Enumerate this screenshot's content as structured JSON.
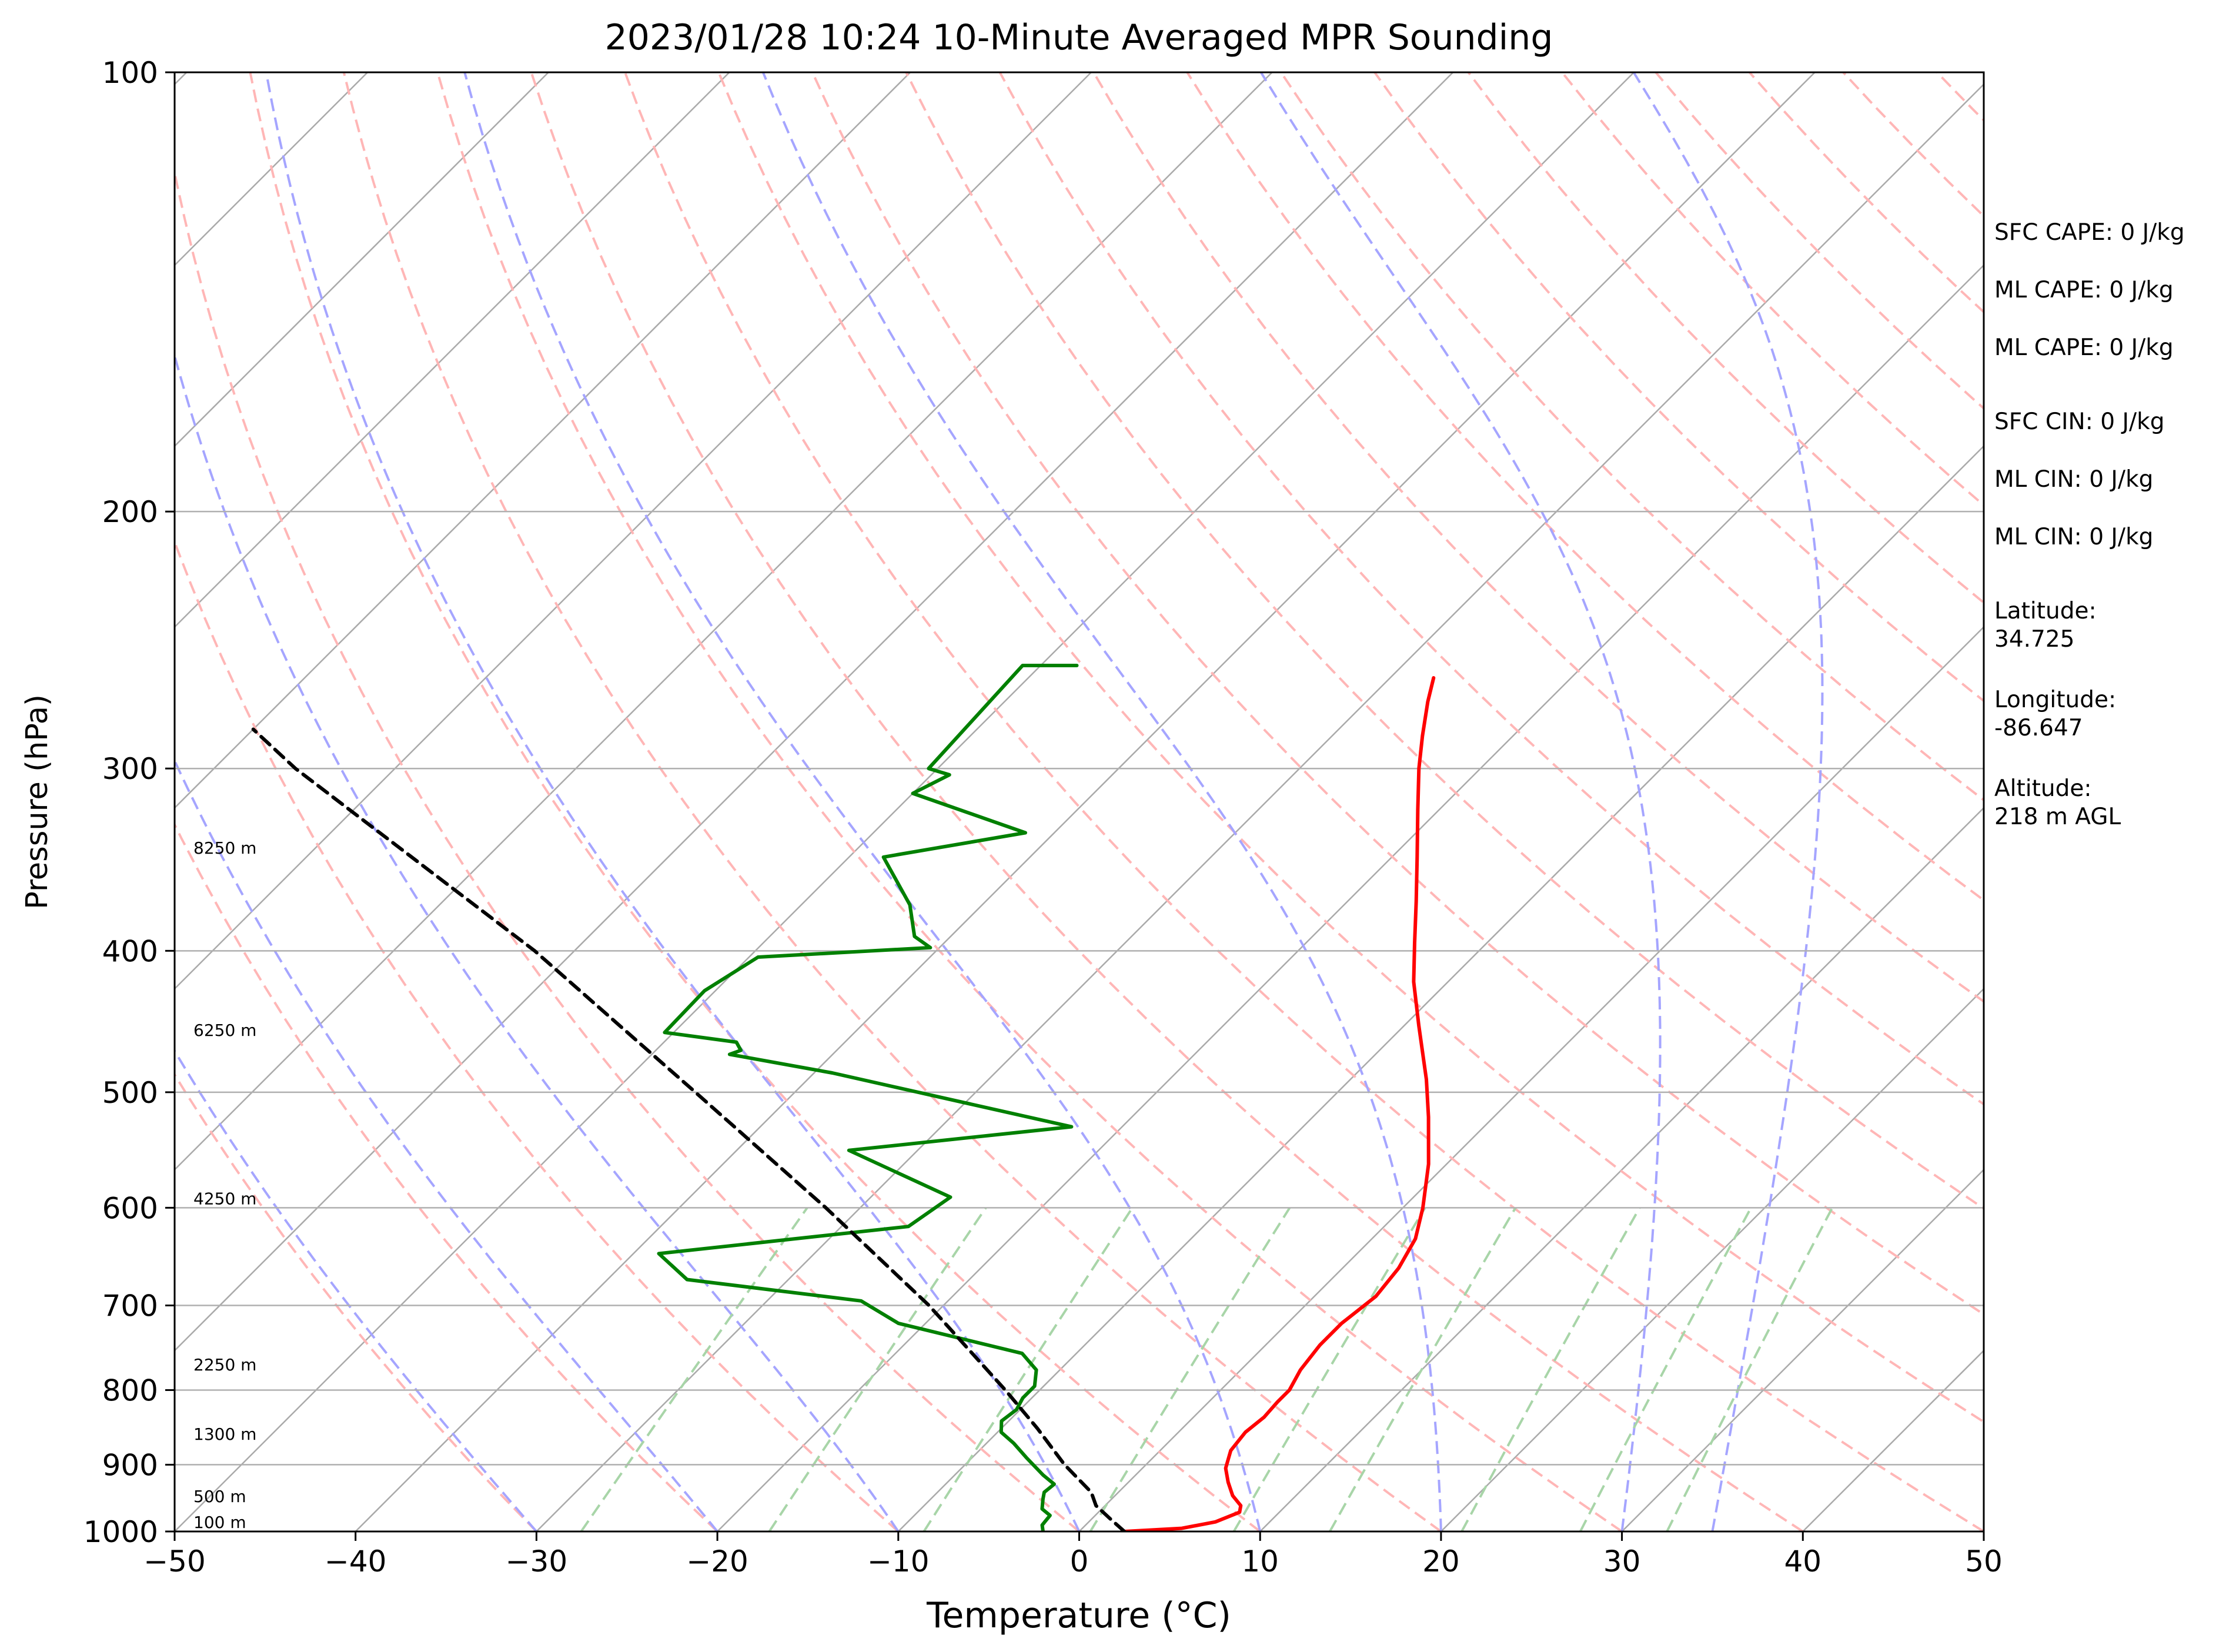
{
  "chart_data": {
    "type": "line",
    "subtype": "skew-t log-p",
    "title": "2023/01/28 10:24 10-Minute Averaged MPR Sounding",
    "xlabel": "Temperature (°C)",
    "ylabel": "Pressure (hPa)",
    "xlim": [
      -50,
      50
    ],
    "ylim": [
      1000,
      100
    ],
    "y_scale": "log",
    "x_ticks": [
      -50,
      -40,
      -30,
      -20,
      -10,
      0,
      10,
      20,
      30,
      40,
      50
    ],
    "x_tick_labels": [
      "−50",
      "−40",
      "−30",
      "−20",
      "−10",
      "0",
      "10",
      "20",
      "30",
      "40",
      "50"
    ],
    "y_ticks": [
      1000,
      900,
      800,
      700,
      600,
      500,
      400,
      300,
      200,
      100
    ],
    "y_tick_labels": [
      "1000",
      "900",
      "800",
      "700",
      "600",
      "500",
      "400",
      "300",
      "200",
      "100"
    ],
    "grid": true,
    "series": [
      {
        "role": "temperature",
        "color": "#ff0000",
        "points": [
          [
            1000,
            2.5
          ],
          [
            995,
            5.5
          ],
          [
            985,
            7.0
          ],
          [
            970,
            7.8
          ],
          [
            960,
            7.5
          ],
          [
            945,
            6.5
          ],
          [
            925,
            5.5
          ],
          [
            905,
            4.6
          ],
          [
            880,
            3.9
          ],
          [
            855,
            3.7
          ],
          [
            835,
            3.9
          ],
          [
            815,
            3.8
          ],
          [
            800,
            3.8
          ],
          [
            775,
            3.3
          ],
          [
            745,
            3.0
          ],
          [
            720,
            3.0
          ],
          [
            690,
            3.4
          ],
          [
            660,
            3.1
          ],
          [
            630,
            2.4
          ],
          [
            600,
            1.1
          ],
          [
            560,
            -1.0
          ],
          [
            520,
            -3.6
          ],
          [
            490,
            -5.8
          ],
          [
            450,
            -9.2
          ],
          [
            420,
            -11.9
          ],
          [
            395,
            -14.0
          ],
          [
            370,
            -16.2
          ],
          [
            345,
            -18.6
          ],
          [
            320,
            -21.2
          ],
          [
            300,
            -23.4
          ],
          [
            285,
            -25.0
          ],
          [
            270,
            -26.6
          ],
          [
            260,
            -27.6
          ]
        ]
      },
      {
        "role": "dewpoint",
        "color": "#008000",
        "points": [
          [
            1000,
            -2.0
          ],
          [
            990,
            -2.4
          ],
          [
            975,
            -2.5
          ],
          [
            965,
            -3.3
          ],
          [
            950,
            -3.8
          ],
          [
            940,
            -4.1
          ],
          [
            928,
            -4.0
          ],
          [
            915,
            -5.1
          ],
          [
            890,
            -7.0
          ],
          [
            870,
            -8.5
          ],
          [
            855,
            -9.8
          ],
          [
            840,
            -10.4
          ],
          [
            825,
            -10.2
          ],
          [
            810,
            -10.5
          ],
          [
            795,
            -10.5
          ],
          [
            775,
            -11.3
          ],
          [
            755,
            -13.0
          ],
          [
            720,
            -21.5
          ],
          [
            695,
            -24.8
          ],
          [
            672,
            -35.6
          ],
          [
            645,
            -38.6
          ],
          [
            618,
            -26.3
          ],
          [
            590,
            -25.6
          ],
          [
            548,
            -33.8
          ],
          [
            528,
            -22.8
          ],
          [
            485,
            -39.0
          ],
          [
            471,
            -45.7
          ],
          [
            468,
            -45.3
          ],
          [
            462,
            -46.0
          ],
          [
            455,
            -50.5
          ],
          [
            426,
            -50.6
          ],
          [
            404,
            -49.5
          ],
          [
            398,
            -40.5
          ],
          [
            391,
            -42.0
          ],
          [
            372,
            -44.0
          ],
          [
            345,
            -48.1
          ],
          [
            332,
            -41.6
          ],
          [
            312,
            -50.0
          ],
          [
            303,
            -49.0
          ],
          [
            300,
            -50.5
          ],
          [
            255,
            -51.0
          ],
          [
            255,
            -48.0
          ]
        ]
      },
      {
        "role": "parcel-profile",
        "color": "#000000",
        "dashed": true,
        "points": [
          [
            1000,
            2.5
          ],
          [
            980,
            1.0
          ],
          [
            960,
            -0.5
          ],
          [
            940,
            -1.5
          ],
          [
            900,
            -4.5
          ],
          [
            850,
            -8.0
          ],
          [
            800,
            -11.9
          ],
          [
            700,
            -20.8
          ],
          [
            600,
            -31.9
          ],
          [
            500,
            -45.5
          ],
          [
            400,
            -62.2
          ],
          [
            300,
            -85.5
          ],
          [
            282,
            -90.0
          ]
        ]
      }
    ],
    "height_labels": [
      {
        "p": 1000,
        "text": "100 m"
      },
      {
        "p": 960,
        "text": "500 m"
      },
      {
        "p": 870,
        "text": "1300 m"
      },
      {
        "p": 780,
        "text": "2250 m"
      },
      {
        "p": 600,
        "text": "4250 m"
      },
      {
        "p": 460,
        "text": "6250 m"
      },
      {
        "p": 345,
        "text": "8250 m"
      }
    ],
    "dry_adiabats_theta_C": [
      -30,
      -20,
      -10,
      0,
      10,
      20,
      30,
      40,
      50,
      60,
      70,
      80,
      90,
      100,
      110,
      120,
      130,
      140,
      150,
      160,
      170,
      180,
      190,
      200
    ],
    "moist_adiabats_T_C": [
      -30,
      -20,
      -10,
      0,
      10,
      20,
      30,
      35
    ],
    "mixing_ratios_gkg": [
      0.4,
      1,
      2,
      4,
      7,
      10,
      16,
      24,
      32
    ],
    "colors": {
      "temperature": "#ff0000",
      "dewpoint": "#008000",
      "parcel": "#000000",
      "isotherms": "#aaaaaa",
      "dry_adiabats": "#ffb6b6",
      "moist_adiabats": "#a5a5ff",
      "mixing_ratio": "#a8d5a8"
    }
  },
  "indices": [
    {
      "label": "SFC CAPE: 0 J/kg"
    },
    {
      "label": "ML CAPE: 0 J/kg"
    },
    {
      "label": "ML CAPE: 0 J/kg"
    },
    {
      "label": "SFC CIN: 0 J/kg"
    },
    {
      "label": "ML CIN: 0 J/kg"
    },
    {
      "label": "ML CIN: 0 J/kg"
    },
    {
      "label": "Latitude:",
      "value": "34.725"
    },
    {
      "label": "Longitude:",
      "value": "-86.647"
    },
    {
      "label": "Altitude:",
      "value": "218 m AGL"
    }
  ]
}
